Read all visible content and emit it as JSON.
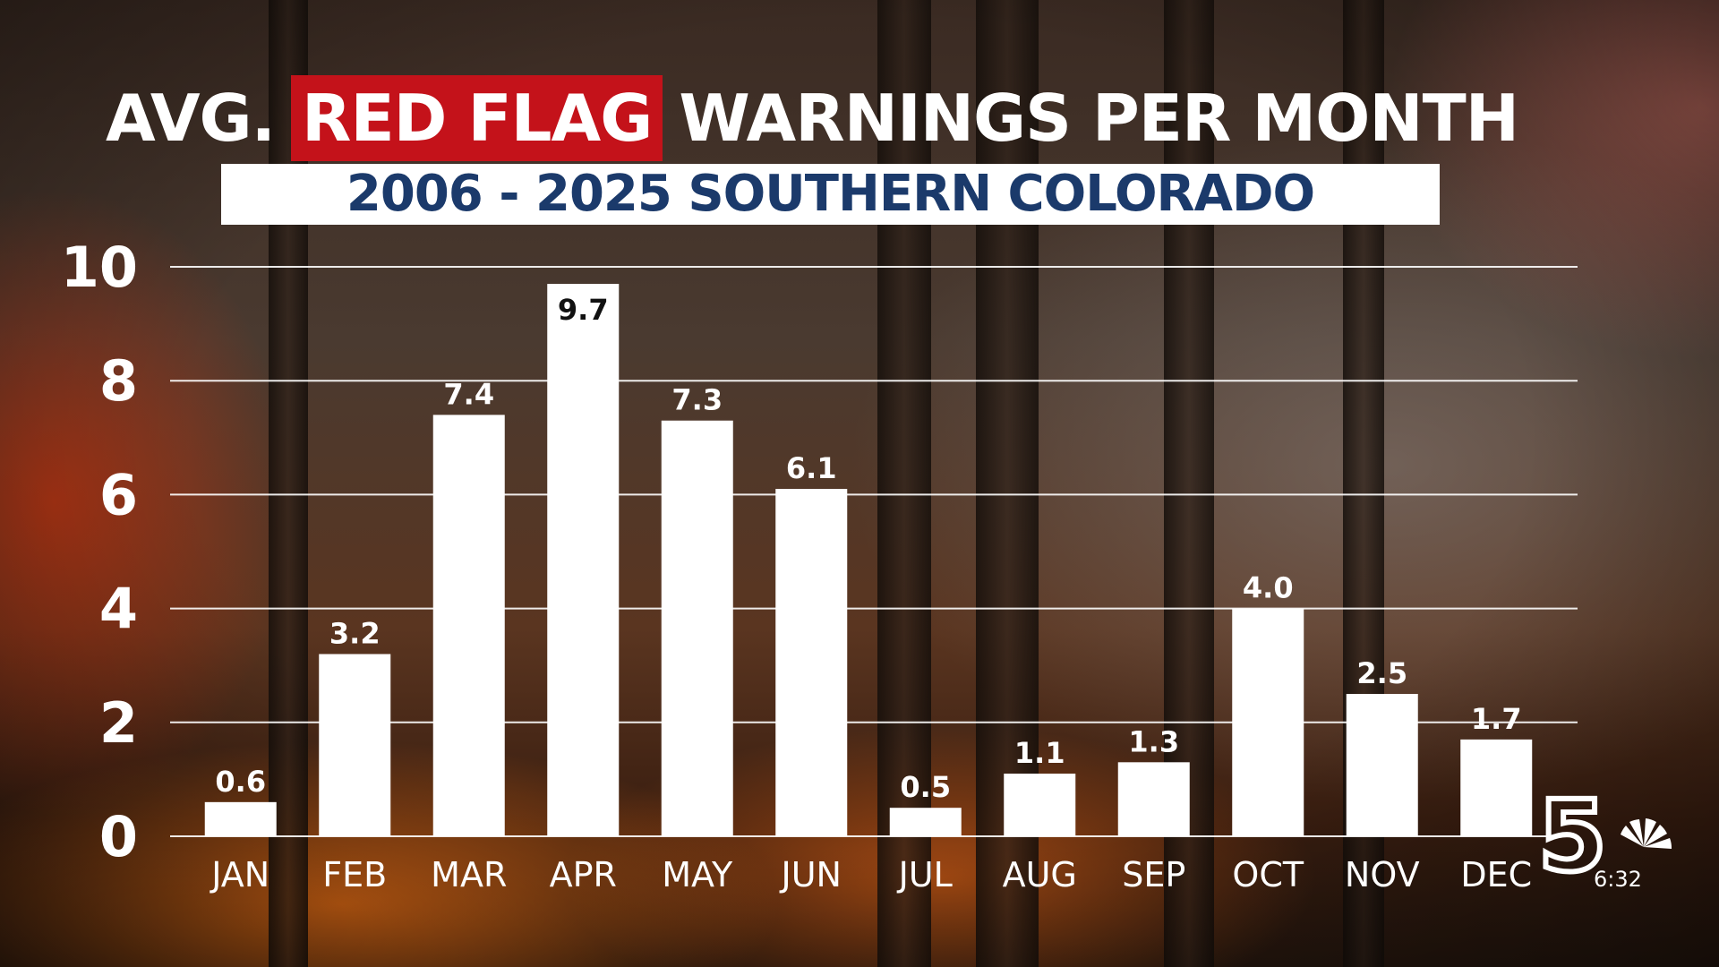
{
  "title": {
    "prefix": "AVG.",
    "highlight": "RED FLAG",
    "suffix": "WARNINGS PER MONTH"
  },
  "subtitle": "2006 - 2025 SOUTHERN COLORADO",
  "station_time": "6:32",
  "colors": {
    "highlight": "#c4121a",
    "subtitle_text": "#1b3a6b",
    "bars": "#ffffff",
    "gridlines": "#ffffff"
  },
  "chart_data": {
    "type": "bar",
    "categories": [
      "JAN",
      "FEB",
      "MAR",
      "APR",
      "MAY",
      "JUN",
      "JUL",
      "AUG",
      "SEP",
      "OCT",
      "NOV",
      "DEC"
    ],
    "values": [
      0.6,
      3.2,
      7.4,
      9.7,
      7.3,
      6.1,
      0.5,
      1.1,
      1.3,
      4.0,
      2.5,
      1.7
    ],
    "data_labels": [
      "0.6",
      "3.2",
      "7.4",
      "9.7",
      "7.3",
      "6.1",
      "0.5",
      "1.1",
      "1.3",
      "4.0",
      "2.5",
      "1.7"
    ],
    "yticks": [
      0,
      2,
      4,
      6,
      8,
      10
    ],
    "ylim": [
      0,
      10
    ],
    "grid": true,
    "legend": "none"
  }
}
